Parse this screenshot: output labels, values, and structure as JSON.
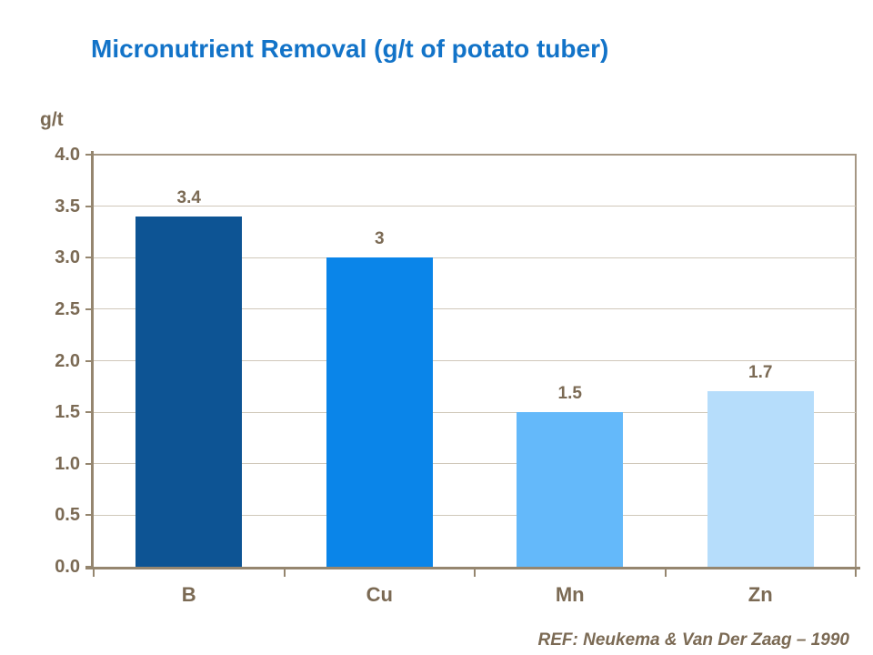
{
  "chart_data": {
    "type": "bar",
    "title": "Micronutrient Removal (g/t of potato tuber)",
    "categories": [
      "B",
      "Cu",
      "Mn",
      "Zn"
    ],
    "values": [
      3.4,
      3,
      1.5,
      1.7
    ],
    "value_labels": [
      "3.4",
      "3",
      "1.5",
      "1.7"
    ],
    "xlabel": "",
    "ylabel": "g/t",
    "ylim": [
      0,
      4
    ],
    "yticks": [
      0,
      0.5,
      1,
      1.5,
      2,
      2.5,
      3,
      3.5,
      4
    ],
    "ytick_decimals": 1,
    "grid": true,
    "legend": false,
    "bar_colors": [
      "#0D5494",
      "#0A85E9",
      "#64B9FA",
      "#B6DDFB"
    ]
  },
  "footer": {
    "reference": "REF: Neukema & Van Der Zaag – 1990"
  },
  "colors": {
    "background": "#FFFFFF",
    "title_text": "#1273C8",
    "label_text": "#7B6A54",
    "axis": "#95866F",
    "border": "#A59784",
    "grid": "#D0C8BA"
  }
}
